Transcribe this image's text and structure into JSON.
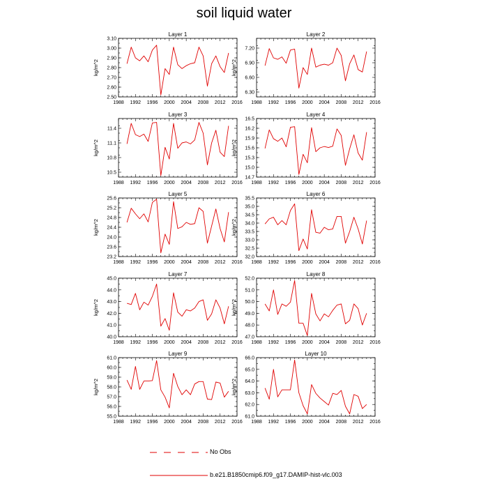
{
  "title": "soil liquid water",
  "legend": {
    "obs_label": "No Obs",
    "model_label": "b.e21.B1850cmip6.f09_g17.DAMIP-hist-vlc.003",
    "line_color": "#e00000"
  },
  "chart_data": [
    {
      "type": "line",
      "title": "Layer 1",
      "ylabel": "kg/m^2",
      "xlim": [
        1988,
        2016
      ],
      "xticks": [
        1988,
        1992,
        1996,
        2000,
        2004,
        2008,
        2012,
        2016
      ],
      "ylim": [
        2.5,
        3.1
      ],
      "yticks": [
        "2.50",
        "2.60",
        "2.70",
        "2.80",
        "2.90",
        "3.00",
        "3.10"
      ],
      "x": [
        1990,
        1991,
        1992,
        1993,
        1994,
        1995,
        1996,
        1997,
        1998,
        1999,
        2000,
        2001,
        2002,
        2003,
        2004,
        2005,
        2006,
        2007,
        2008,
        2009,
        2010,
        2011,
        2012,
        2013,
        2014
      ],
      "series": [
        {
          "color": "#e00000",
          "values": [
            2.84,
            3.01,
            2.9,
            2.87,
            2.92,
            2.86,
            2.98,
            3.03,
            2.52,
            2.79,
            2.73,
            3.01,
            2.83,
            2.79,
            2.82,
            2.84,
            2.85,
            3.01,
            2.92,
            2.61,
            2.84,
            2.92,
            2.81,
            2.75,
            2.95
          ]
        }
      ]
    },
    {
      "type": "line",
      "title": "Layer 2",
      "ylabel": "kg/m^2",
      "xlim": [
        1988,
        2016
      ],
      "xticks": [
        1988,
        1992,
        1996,
        2000,
        2004,
        2008,
        2012,
        2016
      ],
      "ylim": [
        6.2,
        7.4
      ],
      "yticks": [
        "6.30",
        "6.60",
        "6.90",
        "7.20"
      ],
      "x": [
        1990,
        1991,
        1992,
        1993,
        1994,
        1995,
        1996,
        1997,
        1998,
        1999,
        2000,
        2001,
        2002,
        2003,
        2004,
        2005,
        2006,
        2007,
        2008,
        2009,
        2010,
        2011,
        2012,
        2013,
        2014
      ],
      "series": [
        {
          "color": "#e00000",
          "values": [
            6.84,
            7.19,
            7.0,
            6.97,
            7.02,
            6.89,
            7.16,
            7.18,
            6.38,
            6.8,
            6.66,
            7.2,
            6.81,
            6.85,
            6.87,
            6.85,
            6.9,
            7.2,
            7.05,
            6.53,
            6.88,
            7.06,
            6.76,
            6.71,
            7.13
          ]
        }
      ]
    },
    {
      "type": "line",
      "title": "Layer 3",
      "ylabel": "kg/m^2",
      "xlim": [
        1988,
        2016
      ],
      "xticks": [
        1988,
        1992,
        1996,
        2000,
        2004,
        2008,
        2012,
        2016
      ],
      "ylim": [
        10.4,
        11.6
      ],
      "yticks": [
        "10.5",
        "10.8",
        "11.1",
        "11.4"
      ],
      "x": [
        1990,
        1991,
        1992,
        1993,
        1994,
        1995,
        1996,
        1997,
        1998,
        1999,
        2000,
        2001,
        2002,
        2003,
        2004,
        2005,
        2006,
        2007,
        2008,
        2009,
        2010,
        2011,
        2012,
        2013,
        2014
      ],
      "series": [
        {
          "color": "#e00000",
          "values": [
            11.08,
            11.5,
            11.27,
            11.23,
            11.28,
            11.13,
            11.51,
            11.52,
            10.43,
            11.01,
            10.77,
            11.5,
            10.99,
            11.1,
            11.12,
            11.08,
            11.16,
            11.52,
            11.3,
            10.65,
            11.1,
            11.36,
            10.91,
            10.82,
            11.45
          ]
        }
      ]
    },
    {
      "type": "line",
      "title": "Layer 4",
      "ylabel": "kg/m^2",
      "xlim": [
        1988,
        2016
      ],
      "xticks": [
        1988,
        1992,
        1996,
        2000,
        2004,
        2008,
        2012,
        2016
      ],
      "ylim": [
        14.7,
        16.5
      ],
      "yticks": [
        "14.7",
        "15.0",
        "15.3",
        "15.6",
        "15.9",
        "16.2",
        "16.5"
      ],
      "x": [
        1990,
        1991,
        1992,
        1993,
        1994,
        1995,
        1996,
        1997,
        1998,
        1999,
        2000,
        2001,
        2002,
        2003,
        2004,
        2005,
        2006,
        2007,
        2008,
        2009,
        2010,
        2011,
        2012,
        2013,
        2014
      ],
      "series": [
        {
          "color": "#e00000",
          "values": [
            15.58,
            16.15,
            15.88,
            15.8,
            15.9,
            15.63,
            16.23,
            16.25,
            14.78,
            15.4,
            15.14,
            16.22,
            15.48,
            15.6,
            15.64,
            15.61,
            15.65,
            16.18,
            15.98,
            15.06,
            15.57,
            16.0,
            15.44,
            15.22,
            16.08
          ]
        }
      ]
    },
    {
      "type": "line",
      "title": "Layer 5",
      "ylabel": "kg/m^2",
      "xlim": [
        1988,
        2016
      ],
      "xticks": [
        1988,
        1992,
        1996,
        2000,
        2004,
        2008,
        2012,
        2016
      ],
      "ylim": [
        23.2,
        25.6
      ],
      "yticks": [
        "23.2",
        "23.6",
        "24.0",
        "24.4",
        "24.8",
        "25.2",
        "25.6"
      ],
      "x": [
        1990,
        1991,
        1992,
        1993,
        1994,
        1995,
        1996,
        1997,
        1998,
        1999,
        2000,
        2001,
        2002,
        2003,
        2004,
        2005,
        2006,
        2007,
        2008,
        2009,
        2010,
        2011,
        2012,
        2013,
        2014
      ],
      "series": [
        {
          "color": "#e00000",
          "values": [
            24.6,
            25.18,
            24.95,
            24.75,
            24.95,
            24.62,
            25.42,
            25.55,
            23.35,
            24.12,
            23.7,
            25.45,
            24.35,
            24.42,
            24.6,
            24.52,
            24.55,
            25.2,
            25.05,
            23.75,
            24.45,
            25.15,
            24.35,
            23.8,
            25.02
          ]
        }
      ]
    },
    {
      "type": "line",
      "title": "Layer 6",
      "ylabel": "kg/m^2",
      "xlim": [
        1988,
        2016
      ],
      "xticks": [
        1988,
        1992,
        1996,
        2000,
        2004,
        2008,
        2012,
        2016
      ],
      "ylim": [
        32.0,
        35.5
      ],
      "yticks": [
        "32.0",
        "32.5",
        "33.0",
        "33.5",
        "34.0",
        "34.5",
        "35.0",
        "35.5"
      ],
      "x": [
        1990,
        1991,
        1992,
        1993,
        1994,
        1995,
        1996,
        1997,
        1998,
        1999,
        2000,
        2001,
        2002,
        2003,
        2004,
        2005,
        2006,
        2007,
        2008,
        2009,
        2010,
        2011,
        2012,
        2013,
        2014
      ],
      "series": [
        {
          "color": "#e00000",
          "values": [
            33.95,
            34.25,
            34.35,
            33.9,
            34.15,
            33.9,
            34.75,
            35.15,
            32.35,
            33.05,
            32.45,
            34.8,
            33.45,
            33.4,
            33.75,
            33.6,
            33.65,
            34.4,
            34.4,
            32.8,
            33.5,
            34.35,
            33.65,
            32.75,
            34.15
          ]
        }
      ]
    },
    {
      "type": "line",
      "title": "Layer 7",
      "ylabel": "kg/m^2",
      "xlim": [
        1988,
        2016
      ],
      "xticks": [
        1988,
        1992,
        1996,
        2000,
        2004,
        2008,
        2012,
        2016
      ],
      "ylim": [
        40.0,
        45.0
      ],
      "yticks": [
        "40.0",
        "41.0",
        "42.0",
        "43.0",
        "44.0",
        "45.0"
      ],
      "x": [
        1990,
        1991,
        1992,
        1993,
        1994,
        1995,
        1996,
        1997,
        1998,
        1999,
        2000,
        2001,
        2002,
        2003,
        2004,
        2005,
        2006,
        2007,
        2008,
        2009,
        2010,
        2011,
        2012,
        2013,
        2014
      ],
      "series": [
        {
          "color": "#e00000",
          "values": [
            42.85,
            42.75,
            43.7,
            42.3,
            42.95,
            42.7,
            43.45,
            44.5,
            40.9,
            41.55,
            40.55,
            43.75,
            42.1,
            41.75,
            42.3,
            42.2,
            42.45,
            43.0,
            43.15,
            41.4,
            41.95,
            43.15,
            42.45,
            41.1,
            42.6
          ]
        }
      ]
    },
    {
      "type": "line",
      "title": "Layer 8",
      "ylabel": "kg/m^2",
      "xlim": [
        1988,
        2016
      ],
      "xticks": [
        1988,
        1992,
        1996,
        2000,
        2004,
        2008,
        2012,
        2016
      ],
      "ylim": [
        47.0,
        52.0
      ],
      "yticks": [
        "47.0",
        "48.0",
        "49.0",
        "50.0",
        "51.0",
        "52.0"
      ],
      "x": [
        1990,
        1991,
        1992,
        1993,
        1994,
        1995,
        1996,
        1997,
        1998,
        1999,
        2000,
        2001,
        2002,
        2003,
        2004,
        2005,
        2006,
        2007,
        2008,
        2009,
        2010,
        2011,
        2012,
        2013,
        2014
      ],
      "series": [
        {
          "color": "#e00000",
          "values": [
            49.8,
            49.2,
            51.0,
            48.9,
            49.8,
            49.6,
            49.95,
            51.8,
            48.15,
            48.15,
            47.1,
            50.7,
            48.95,
            48.35,
            48.95,
            48.7,
            49.25,
            49.7,
            49.8,
            48.1,
            48.4,
            49.8,
            49.4,
            48.0,
            49.0
          ]
        }
      ]
    },
    {
      "type": "line",
      "title": "Layer 9",
      "ylabel": "kg/m^2",
      "xlim": [
        1988,
        2016
      ],
      "xticks": [
        1988,
        1992,
        1996,
        2000,
        2004,
        2008,
        2012,
        2016
      ],
      "ylim": [
        55.0,
        61.0
      ],
      "yticks": [
        "55.0",
        "56.0",
        "57.0",
        "58.0",
        "59.0",
        "60.0",
        "61.0"
      ],
      "x": [
        1990,
        1991,
        1992,
        1993,
        1994,
        1995,
        1996,
        1997,
        1998,
        1999,
        2000,
        2001,
        2002,
        2003,
        2004,
        2005,
        2006,
        2007,
        2008,
        2009,
        2010,
        2011,
        2012,
        2013,
        2014
      ],
      "series": [
        {
          "color": "#e00000",
          "values": [
            58.7,
            57.75,
            60.1,
            57.75,
            58.6,
            58.6,
            58.65,
            60.7,
            57.7,
            56.95,
            55.85,
            59.4,
            58.05,
            57.2,
            57.7,
            57.2,
            58.3,
            58.55,
            58.55,
            56.75,
            56.7,
            58.5,
            58.4,
            56.95,
            57.55
          ]
        }
      ]
    },
    {
      "type": "line",
      "title": "Layer 10",
      "ylabel": "kg/m^2",
      "xlim": [
        1988,
        2016
      ],
      "xticks": [
        1988,
        1992,
        1996,
        2000,
        2004,
        2008,
        2012,
        2016
      ],
      "ylim": [
        61.0,
        66.0
      ],
      "yticks": [
        "61.0",
        "62.0",
        "63.0",
        "64.0",
        "65.0",
        "66.0"
      ],
      "x": [
        1990,
        1991,
        1992,
        1993,
        1994,
        1995,
        1996,
        1997,
        1998,
        1999,
        2000,
        2001,
        2002,
        2003,
        2004,
        2005,
        2006,
        2007,
        2008,
        2009,
        2010,
        2011,
        2012,
        2013,
        2014
      ],
      "series": [
        {
          "color": "#e00000",
          "values": [
            63.4,
            62.45,
            65.0,
            62.65,
            63.25,
            63.25,
            63.25,
            65.8,
            63.0,
            61.9,
            61.2,
            63.7,
            62.95,
            62.55,
            62.25,
            61.95,
            62.95,
            62.85,
            63.2,
            61.85,
            61.2,
            62.85,
            62.7,
            61.65,
            62.0
          ]
        }
      ]
    }
  ]
}
